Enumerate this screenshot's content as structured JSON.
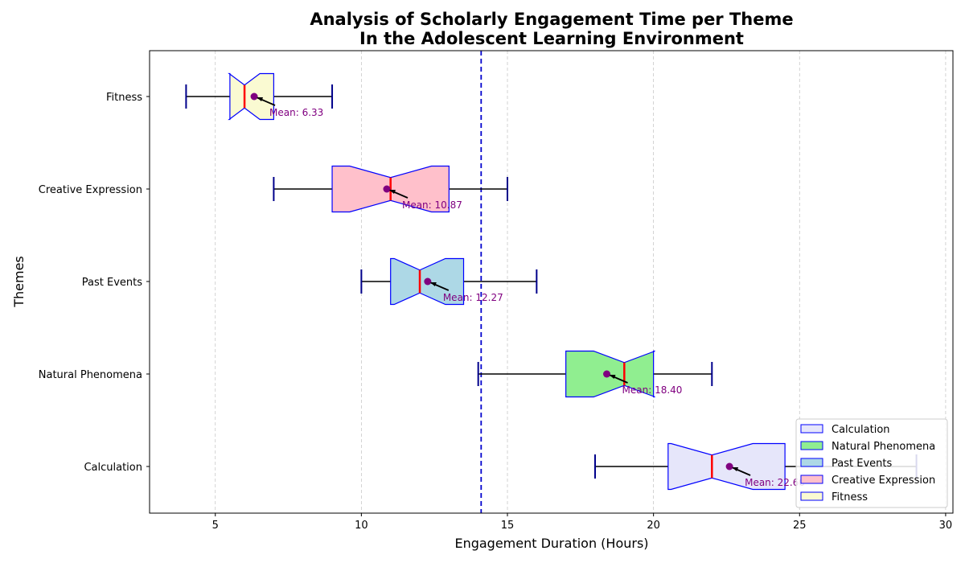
{
  "chart_data": {
    "type": "boxplot",
    "title_line1": "Analysis of Scholarly Engagement Time per Theme",
    "title_line2": "In the Adolescent Learning Environment",
    "xlabel": "Engagement Duration (Hours)",
    "ylabel": "Themes",
    "xlim": [
      2.75,
      30.25
    ],
    "xticks": [
      5,
      10,
      15,
      20,
      25,
      30
    ],
    "grid": "vertical dashed",
    "reference_line": 14.1,
    "legend_position": "bottom-right",
    "categories": [
      "Calculation",
      "Natural Phenomena",
      "Past Events",
      "Creative Expression",
      "Fitness"
    ],
    "series": [
      {
        "name": "Calculation",
        "color": "#e6e6fa",
        "min": 18,
        "q1": 20.5,
        "median": 22,
        "q3": 24.5,
        "max": 29,
        "mean": 22.6,
        "mean_label": "Mean: 22.60"
      },
      {
        "name": "Natural Phenomena",
        "color": "#90ee90",
        "min": 14,
        "q1": 17,
        "median": 19,
        "q3": 20,
        "max": 22,
        "mean": 18.4,
        "mean_label": "Mean: 18.40"
      },
      {
        "name": "Past Events",
        "color": "#add8e6",
        "min": 10,
        "q1": 11,
        "median": 12,
        "q3": 13.5,
        "max": 16,
        "mean": 12.27,
        "mean_label": "Mean: 12.27"
      },
      {
        "name": "Creative Expression",
        "color": "#ffc0cb",
        "min": 7,
        "q1": 9,
        "median": 11,
        "q3": 13,
        "max": 15,
        "mean": 10.87,
        "mean_label": "Mean: 10.87"
      },
      {
        "name": "Fitness",
        "color": "#fafad2",
        "min": 4,
        "q1": 5.5,
        "median": 6,
        "q3": 7,
        "max": 9,
        "mean": 6.33,
        "mean_label": "Mean: 6.33"
      }
    ]
  }
}
